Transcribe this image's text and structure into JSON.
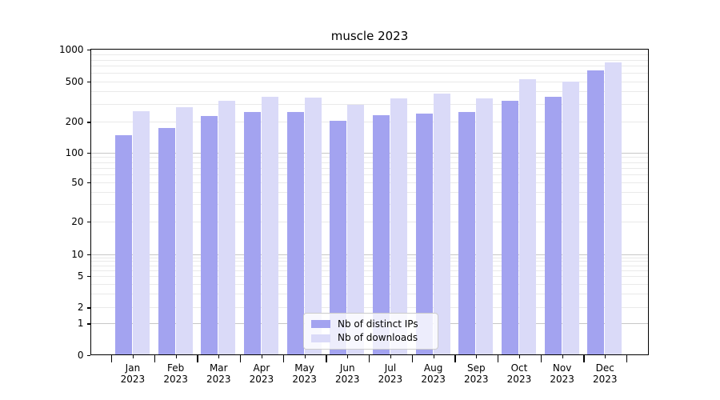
{
  "figure": {
    "title": "muscle 2023"
  },
  "chart_data": {
    "type": "bar",
    "title": "muscle 2023",
    "subtitle": "",
    "xlabel": "",
    "ylabel": "",
    "categories": [
      {
        "month": "Jan",
        "year": "2023"
      },
      {
        "month": "Feb",
        "year": "2023"
      },
      {
        "month": "Mar",
        "year": "2023"
      },
      {
        "month": "Apr",
        "year": "2023"
      },
      {
        "month": "May",
        "year": "2023"
      },
      {
        "month": "Jun",
        "year": "2023"
      },
      {
        "month": "Jul",
        "year": "2023"
      },
      {
        "month": "Aug",
        "year": "2023"
      },
      {
        "month": "Sep",
        "year": "2023"
      },
      {
        "month": "Oct",
        "year": "2023"
      },
      {
        "month": "Nov",
        "year": "2023"
      },
      {
        "month": "Dec",
        "year": "2023"
      }
    ],
    "series": [
      {
        "name": "Nb of distinct IPs",
        "color": "#a3a3f0",
        "values": [
          148,
          175,
          230,
          248,
          250,
          205,
          232,
          240,
          248,
          320,
          350,
          635
        ]
      },
      {
        "name": "Nb of downloads",
        "color": "#dadaf8",
        "values": [
          255,
          276,
          320,
          350,
          345,
          293,
          340,
          375,
          340,
          520,
          495,
          760
        ]
      }
    ],
    "y_axis": {
      "scale": "symlog",
      "tick_values": [
        0,
        1,
        2,
        5,
        10,
        20,
        50,
        100,
        200,
        500,
        1000
      ],
      "tick_labels": [
        "0",
        "1",
        "2",
        "5",
        "10",
        "20",
        "50",
        "100",
        "200",
        "500",
        "1000"
      ],
      "range": [
        0,
        1000
      ],
      "grid": "both"
    },
    "legend": {
      "position": "lower-center",
      "entries": [
        "Nb of distinct IPs",
        "Nb of downloads"
      ]
    }
  },
  "colors": {
    "bar_distinct_ips": "#a3a3f0",
    "bar_downloads": "#dadaf8",
    "grid_major": "#c7c7c7",
    "grid_minor": "#e9e9e9",
    "axis_frame": "#000000",
    "legend_border": "#cccccc",
    "background": "#ffffff"
  }
}
